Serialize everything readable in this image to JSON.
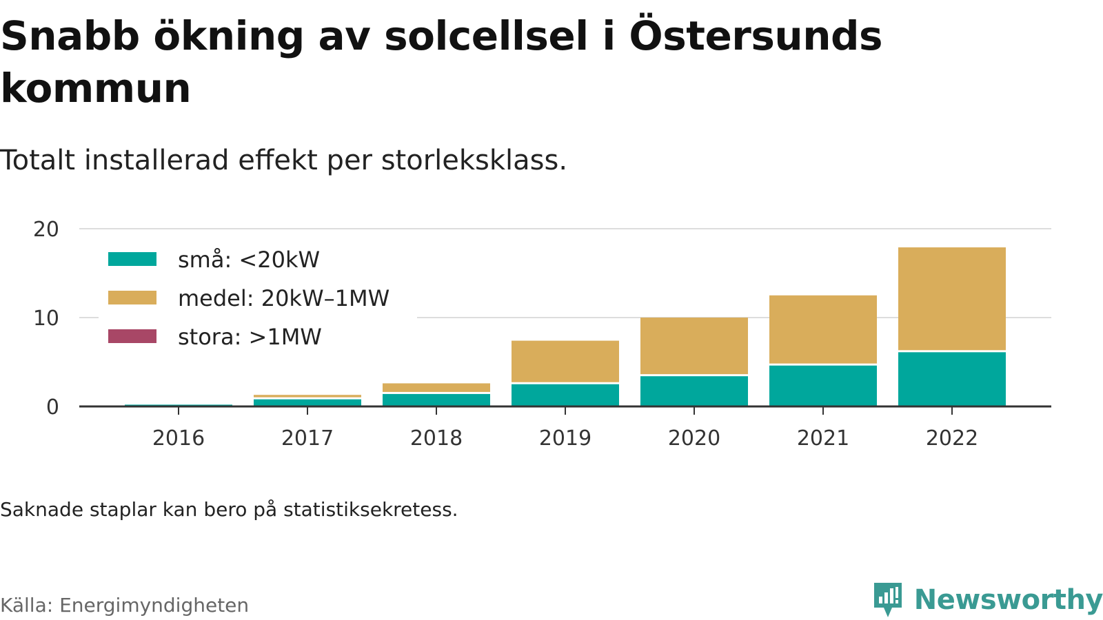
{
  "title": "Snabb ökning av solcellsel i Östersunds kommun",
  "subtitle": "Totalt installerad effekt per storleksklass.",
  "note": "Saknade staplar kan bero på statistiksekretess.",
  "source": "Källa: Energimyndigheten",
  "brand": {
    "name": "Newsworthy",
    "icon": "newsworthy-logo-icon",
    "color": "#3a9a93"
  },
  "chart_data": {
    "type": "bar",
    "stacked": true,
    "categories": [
      "2016",
      "2017",
      "2018",
      "2019",
      "2020",
      "2021",
      "2022"
    ],
    "series": [
      {
        "name": "små: <20kW",
        "color": "#00a79c",
        "values": [
          0.2,
          0.8,
          1.4,
          2.5,
          3.4,
          4.6,
          6.1
        ]
      },
      {
        "name": "medel: 20kW–1MW",
        "color": "#d9ad5b",
        "values": [
          0,
          0.5,
          1.2,
          4.9,
          6.6,
          7.9,
          11.8
        ]
      },
      {
        "name": "stora: >1MW",
        "color": "#a84766",
        "values": [
          0,
          0,
          0,
          0,
          0,
          0,
          0
        ]
      }
    ],
    "yticks": [
      0,
      10,
      20
    ],
    "ylim": [
      0,
      20
    ],
    "grid": true,
    "legend_position": "top-left",
    "xlabel": "",
    "ylabel": ""
  }
}
